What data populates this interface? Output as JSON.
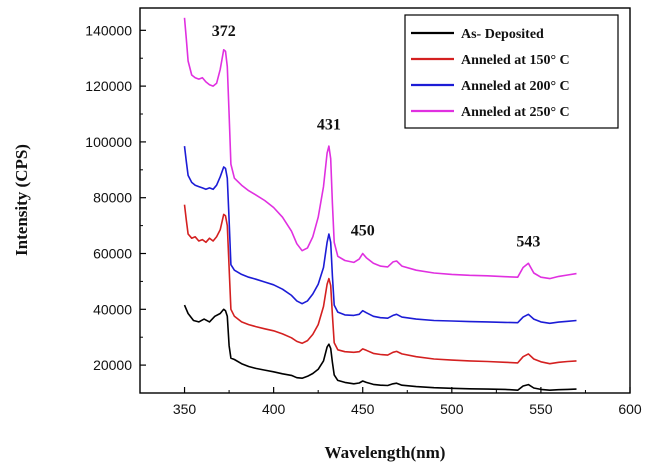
{
  "chart_data": {
    "type": "line",
    "xlabel": "Wavelength(nm)",
    "ylabel": "Intensity (CPS)",
    "xlim": [
      325,
      600
    ],
    "ylim": [
      10000,
      148000
    ],
    "xticks": [
      350,
      400,
      450,
      500,
      550,
      600
    ],
    "yticks": [
      20000,
      40000,
      60000,
      80000,
      100000,
      120000,
      140000
    ],
    "grid": false,
    "legend_position": "top-right",
    "series": [
      {
        "name": "As- Deposited",
        "color": "#000000",
        "points": [
          [
            350,
            41500
          ],
          [
            352,
            38500
          ],
          [
            355,
            36000
          ],
          [
            358,
            35500
          ],
          [
            361,
            36500
          ],
          [
            364,
            35500
          ],
          [
            367,
            37500
          ],
          [
            370,
            38500
          ],
          [
            372,
            40000
          ],
          [
            373,
            39500
          ],
          [
            374,
            37500
          ],
          [
            375,
            27000
          ],
          [
            376,
            22500
          ],
          [
            378,
            22000
          ],
          [
            382,
            20500
          ],
          [
            386,
            19500
          ],
          [
            390,
            18800
          ],
          [
            395,
            18200
          ],
          [
            400,
            17600
          ],
          [
            405,
            16900
          ],
          [
            410,
            16300
          ],
          [
            413,
            15500
          ],
          [
            416,
            15300
          ],
          [
            419,
            16000
          ],
          [
            422,
            17000
          ],
          [
            425,
            18500
          ],
          [
            428,
            21500
          ],
          [
            430,
            26500
          ],
          [
            431,
            27500
          ],
          [
            432,
            26000
          ],
          [
            433,
            21000
          ],
          [
            434,
            16500
          ],
          [
            436,
            14500
          ],
          [
            440,
            13800
          ],
          [
            445,
            13300
          ],
          [
            448,
            13600
          ],
          [
            450,
            14300
          ],
          [
            452,
            13800
          ],
          [
            456,
            13100
          ],
          [
            460,
            12800
          ],
          [
            464,
            12700
          ],
          [
            467,
            13300
          ],
          [
            469,
            13500
          ],
          [
            472,
            12800
          ],
          [
            480,
            12300
          ],
          [
            490,
            11900
          ],
          [
            500,
            11700
          ],
          [
            510,
            11500
          ],
          [
            520,
            11400
          ],
          [
            530,
            11300
          ],
          [
            537,
            11000
          ],
          [
            540,
            12500
          ],
          [
            543,
            13000
          ],
          [
            546,
            11800
          ],
          [
            550,
            11300
          ],
          [
            555,
            11000
          ],
          [
            560,
            11200
          ],
          [
            565,
            11300
          ],
          [
            570,
            11400
          ]
        ]
      },
      {
        "name": "Anneled at 150° C",
        "color": "#d42020",
        "points": [
          [
            350,
            77500
          ],
          [
            351,
            72000
          ],
          [
            352,
            67000
          ],
          [
            354,
            65500
          ],
          [
            356,
            66000
          ],
          [
            358,
            64500
          ],
          [
            360,
            65000
          ],
          [
            362,
            64000
          ],
          [
            364,
            65500
          ],
          [
            366,
            64500
          ],
          [
            368,
            66000
          ],
          [
            370,
            68500
          ],
          [
            372,
            74000
          ],
          [
            373,
            73500
          ],
          [
            374,
            70000
          ],
          [
            375,
            55000
          ],
          [
            376,
            40000
          ],
          [
            378,
            37500
          ],
          [
            382,
            35500
          ],
          [
            386,
            34500
          ],
          [
            390,
            33800
          ],
          [
            395,
            33000
          ],
          [
            400,
            32300
          ],
          [
            405,
            31200
          ],
          [
            410,
            29800
          ],
          [
            413,
            28500
          ],
          [
            416,
            27800
          ],
          [
            419,
            28800
          ],
          [
            422,
            31000
          ],
          [
            425,
            34500
          ],
          [
            428,
            41000
          ],
          [
            430,
            49000
          ],
          [
            431,
            51000
          ],
          [
            432,
            48500
          ],
          [
            433,
            38000
          ],
          [
            434,
            28000
          ],
          [
            436,
            25500
          ],
          [
            440,
            24800
          ],
          [
            445,
            24600
          ],
          [
            448,
            24800
          ],
          [
            450,
            25800
          ],
          [
            452,
            25300
          ],
          [
            456,
            24200
          ],
          [
            460,
            23800
          ],
          [
            464,
            23600
          ],
          [
            467,
            24600
          ],
          [
            469,
            24900
          ],
          [
            472,
            24000
          ],
          [
            480,
            23000
          ],
          [
            490,
            22200
          ],
          [
            500,
            21800
          ],
          [
            510,
            21500
          ],
          [
            520,
            21300
          ],
          [
            530,
            21000
          ],
          [
            537,
            20800
          ],
          [
            540,
            23000
          ],
          [
            543,
            24000
          ],
          [
            546,
            22200
          ],
          [
            550,
            21200
          ],
          [
            555,
            20500
          ],
          [
            560,
            21000
          ],
          [
            565,
            21300
          ],
          [
            570,
            21500
          ]
        ]
      },
      {
        "name": "Anneled at 200° C",
        "color": "#1c1cd6",
        "points": [
          [
            350,
            98500
          ],
          [
            351,
            93000
          ],
          [
            352,
            88000
          ],
          [
            354,
            85500
          ],
          [
            356,
            84500
          ],
          [
            358,
            84000
          ],
          [
            360,
            83500
          ],
          [
            362,
            83000
          ],
          [
            364,
            83500
          ],
          [
            366,
            83000
          ],
          [
            368,
            84500
          ],
          [
            370,
            87500
          ],
          [
            372,
            91000
          ],
          [
            373,
            90500
          ],
          [
            374,
            87000
          ],
          [
            375,
            72000
          ],
          [
            376,
            56000
          ],
          [
            378,
            54000
          ],
          [
            382,
            52500
          ],
          [
            386,
            51500
          ],
          [
            390,
            50800
          ],
          [
            395,
            49800
          ],
          [
            400,
            48800
          ],
          [
            405,
            47200
          ],
          [
            410,
            45000
          ],
          [
            413,
            43000
          ],
          [
            416,
            42000
          ],
          [
            419,
            43000
          ],
          [
            422,
            45500
          ],
          [
            425,
            49000
          ],
          [
            428,
            55000
          ],
          [
            430,
            64000
          ],
          [
            431,
            67000
          ],
          [
            432,
            64000
          ],
          [
            433,
            52000
          ],
          [
            434,
            41500
          ],
          [
            436,
            39000
          ],
          [
            440,
            38000
          ],
          [
            445,
            37800
          ],
          [
            448,
            38200
          ],
          [
            450,
            39500
          ],
          [
            452,
            38800
          ],
          [
            456,
            37500
          ],
          [
            460,
            37000
          ],
          [
            464,
            36800
          ],
          [
            467,
            37800
          ],
          [
            469,
            38200
          ],
          [
            472,
            37200
          ],
          [
            480,
            36500
          ],
          [
            490,
            36000
          ],
          [
            500,
            35800
          ],
          [
            510,
            35600
          ],
          [
            520,
            35500
          ],
          [
            530,
            35300
          ],
          [
            537,
            35200
          ],
          [
            540,
            37200
          ],
          [
            543,
            38200
          ],
          [
            546,
            36500
          ],
          [
            550,
            35500
          ],
          [
            555,
            35000
          ],
          [
            560,
            35400
          ],
          [
            565,
            35700
          ],
          [
            570,
            36000
          ]
        ]
      },
      {
        "name": "Anneled at 250° C",
        "color": "#e030e0",
        "points": [
          [
            350,
            144500
          ],
          [
            351,
            137000
          ],
          [
            352,
            129000
          ],
          [
            354,
            124000
          ],
          [
            356,
            123000
          ],
          [
            358,
            122500
          ],
          [
            360,
            123000
          ],
          [
            362,
            121500
          ],
          [
            364,
            120500
          ],
          [
            366,
            120000
          ],
          [
            368,
            121000
          ],
          [
            370,
            126000
          ],
          [
            372,
            133000
          ],
          [
            373,
            132500
          ],
          [
            374,
            127000
          ],
          [
            375,
            110000
          ],
          [
            376,
            92000
          ],
          [
            378,
            87000
          ],
          [
            382,
            84500
          ],
          [
            386,
            82500
          ],
          [
            390,
            81000
          ],
          [
            395,
            79000
          ],
          [
            400,
            76500
          ],
          [
            405,
            73000
          ],
          [
            410,
            68000
          ],
          [
            413,
            63500
          ],
          [
            416,
            61000
          ],
          [
            419,
            62000
          ],
          [
            422,
            66000
          ],
          [
            425,
            73000
          ],
          [
            428,
            84000
          ],
          [
            430,
            96000
          ],
          [
            431,
            98500
          ],
          [
            432,
            94000
          ],
          [
            433,
            78000
          ],
          [
            434,
            64000
          ],
          [
            436,
            59000
          ],
          [
            440,
            57500
          ],
          [
            445,
            56800
          ],
          [
            448,
            58000
          ],
          [
            450,
            60000
          ],
          [
            452,
            58500
          ],
          [
            456,
            56500
          ],
          [
            460,
            55500
          ],
          [
            464,
            55200
          ],
          [
            467,
            57000
          ],
          [
            469,
            57300
          ],
          [
            472,
            55500
          ],
          [
            480,
            54000
          ],
          [
            490,
            53000
          ],
          [
            500,
            52500
          ],
          [
            510,
            52200
          ],
          [
            520,
            52000
          ],
          [
            530,
            51700
          ],
          [
            537,
            51500
          ],
          [
            540,
            55000
          ],
          [
            543,
            56500
          ],
          [
            546,
            53000
          ],
          [
            550,
            51500
          ],
          [
            555,
            51000
          ],
          [
            560,
            51800
          ],
          [
            565,
            52300
          ],
          [
            570,
            52800
          ]
        ]
      }
    ],
    "annotations": [
      {
        "text": "372",
        "x": 372,
        "y": 138000
      },
      {
        "text": "431",
        "x": 431,
        "y": 104500
      },
      {
        "text": "450",
        "x": 450,
        "y": 66500
      },
      {
        "text": "543",
        "x": 543,
        "y": 62500
      }
    ]
  }
}
